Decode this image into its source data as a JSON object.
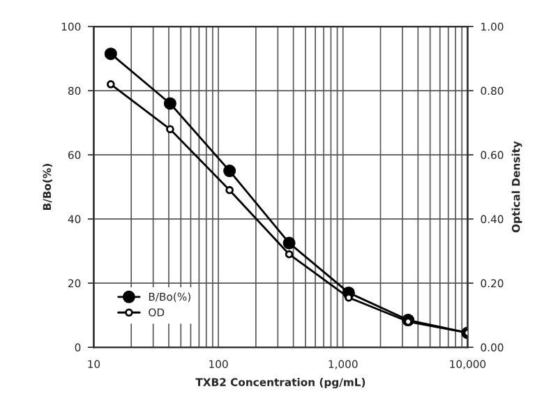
{
  "chart_data": {
    "type": "line",
    "xlabel": "TXB2 Concentration (pg/mL)",
    "ylabel": "B/Bo(%)",
    "y2label": "Optical Density",
    "x": [
      13.7,
      41,
      123,
      370,
      1111,
      3333,
      10000
    ],
    "series": [
      {
        "name": "B/Bo(%)",
        "color": "#000000",
        "values": [
          91.5,
          76,
          55,
          32.5,
          17,
          8.5,
          4.5
        ]
      },
      {
        "name": "OD",
        "color": "#000000",
        "axis": "y2",
        "values": [
          0.82,
          0.68,
          0.49,
          0.29,
          0.155,
          0.08,
          0.045
        ]
      }
    ],
    "log": "x",
    "xlim": [
      10,
      10000
    ],
    "xticks": [
      {
        "value": 10,
        "label": "10"
      },
      {
        "value": 100,
        "label": "100"
      },
      {
        "value": 1000,
        "label": "1,000"
      },
      {
        "value": 10000,
        "label": "10,000"
      }
    ],
    "ylim": [
      0,
      100
    ],
    "yticks": [
      0,
      20,
      40,
      60,
      80,
      100
    ],
    "y2lim": [
      0,
      1
    ],
    "y2ticks": [
      {
        "value": 0,
        "label": "0.00"
      },
      {
        "value": 0.2,
        "label": "0.20"
      },
      {
        "value": 0.4,
        "label": "0.40"
      },
      {
        "value": 0.6,
        "label": "0.60"
      },
      {
        "value": 0.8,
        "label": "0.80"
      },
      {
        "value": 1,
        "label": "1.00"
      }
    ],
    "grid": true,
    "legend": "bottom left",
    "marker": "circle",
    "line_style": "solid"
  }
}
